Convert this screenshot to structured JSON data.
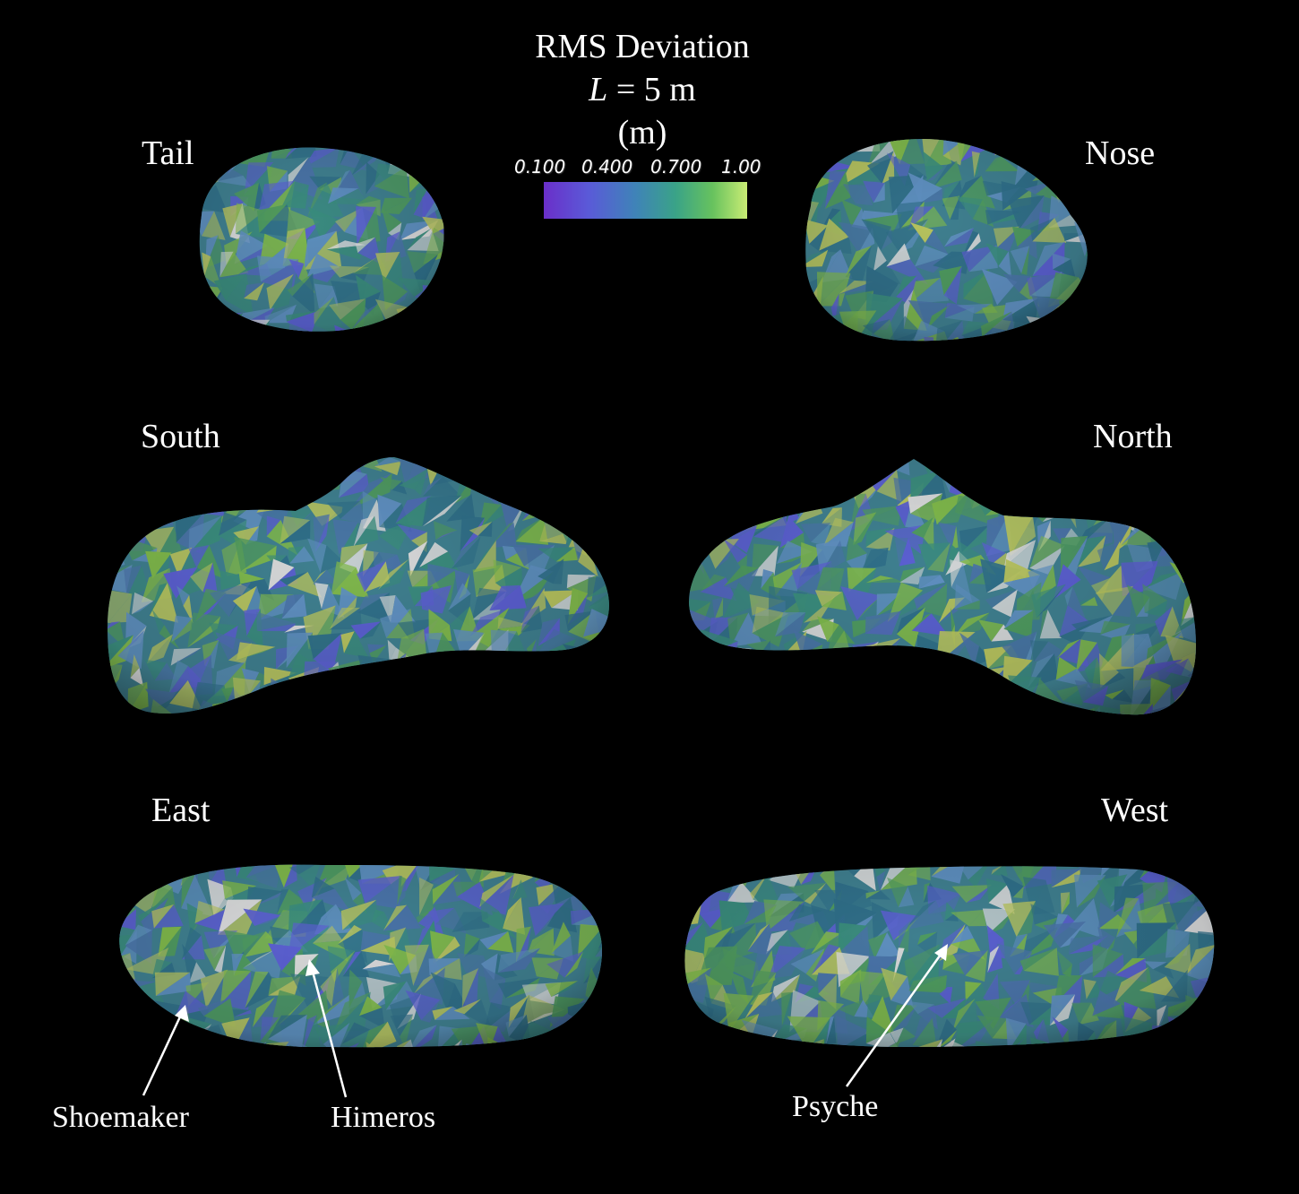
{
  "title": {
    "line1": "RMS Deviation",
    "line2_var": "L",
    "line2_rest": " = 5 m",
    "line3": "(m)"
  },
  "colorbar": {
    "ticks": [
      "0.100",
      "0.400",
      "0.700",
      "1.00"
    ],
    "colors": [
      "#6a2fc9",
      "#5a5ad8",
      "#3f83b8",
      "#3aa387",
      "#67c25e",
      "#c9ec74"
    ]
  },
  "views": {
    "tail": "Tail",
    "nose": "Nose",
    "south": "South",
    "north": "North",
    "east": "East",
    "west": "West"
  },
  "features": {
    "shoemaker": "Shoemaker",
    "himeros": "Himeros",
    "psyche": "Psyche"
  },
  "palette": {
    "base": "#3f7f8f",
    "facets": [
      "#3a8c7c",
      "#4a73a8",
      "#5b5fd0",
      "#4f9a5e",
      "#7fb84a",
      "#b6c25e",
      "#2f6e88",
      "#5f8fc0",
      "#d9d9d9"
    ]
  }
}
